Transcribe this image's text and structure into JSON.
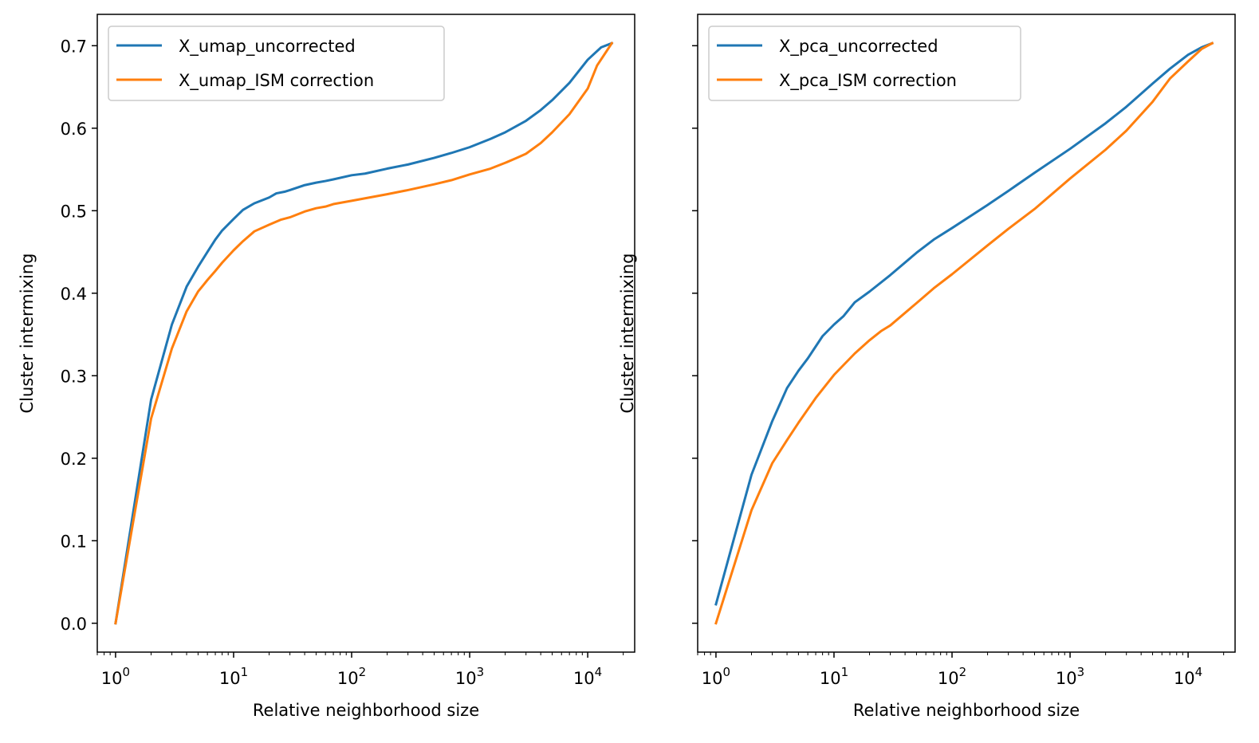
{
  "chart_data": [
    {
      "type": "line",
      "xlabel": "Relative neighborhood size",
      "ylabel": "Cluster intermixing",
      "xscale": "log",
      "xlim": [
        0.7,
        25000
      ],
      "ylim": [
        -0.035,
        0.738
      ],
      "xticks": [
        {
          "value": 1,
          "base": "10",
          "exp": "0"
        },
        {
          "value": 10,
          "base": "10",
          "exp": "1"
        },
        {
          "value": 100,
          "base": "10",
          "exp": "2"
        },
        {
          "value": 1000,
          "base": "10",
          "exp": "3"
        },
        {
          "value": 10000,
          "base": "10",
          "exp": "4"
        }
      ],
      "yticks": [
        "0.0",
        "0.1",
        "0.2",
        "0.3",
        "0.4",
        "0.5",
        "0.6",
        "0.7"
      ],
      "show_ytick_labels": true,
      "legend_position": "upper-left",
      "grid": false,
      "series": [
        {
          "name": "X_umap_uncorrected",
          "color": "#1f77b4",
          "x": [
            1,
            2,
            3,
            4,
            5,
            6,
            7,
            8,
            10,
            12,
            15,
            20,
            23,
            27,
            30,
            40,
            50,
            60,
            70,
            100,
            130,
            200,
            300,
            500,
            700,
            1000,
            1500,
            2000,
            3000,
            4000,
            5000,
            7000,
            10000,
            13000,
            16000
          ],
          "y": [
            0.0,
            0.271,
            0.362,
            0.408,
            0.432,
            0.45,
            0.465,
            0.476,
            0.49,
            0.501,
            0.509,
            0.516,
            0.521,
            0.523,
            0.525,
            0.531,
            0.534,
            0.536,
            0.538,
            0.543,
            0.545,
            0.551,
            0.556,
            0.564,
            0.57,
            0.577,
            0.587,
            0.595,
            0.609,
            0.622,
            0.634,
            0.655,
            0.683,
            0.698,
            0.703
          ]
        },
        {
          "name": "X_umap_ISM correction",
          "color": "#ff7f0e",
          "x": [
            1,
            2,
            3,
            4,
            5,
            6,
            7,
            8,
            10,
            12,
            15,
            20,
            25,
            30,
            40,
            50,
            60,
            70,
            100,
            200,
            300,
            500,
            700,
            1000,
            1500,
            2000,
            2500,
            3000,
            4000,
            5000,
            7000,
            10000,
            12000,
            16000
          ],
          "y": [
            0.0,
            0.248,
            0.333,
            0.378,
            0.402,
            0.416,
            0.427,
            0.437,
            0.452,
            0.463,
            0.475,
            0.483,
            0.489,
            0.492,
            0.499,
            0.503,
            0.505,
            0.508,
            0.512,
            0.52,
            0.525,
            0.532,
            0.537,
            0.544,
            0.551,
            0.558,
            0.564,
            0.569,
            0.582,
            0.595,
            0.617,
            0.648,
            0.676,
            0.703
          ]
        }
      ]
    },
    {
      "type": "line",
      "xlabel": "Relative neighborhood size",
      "ylabel": "Cluster intermixing",
      "xscale": "log",
      "xlim": [
        0.7,
        25000
      ],
      "ylim": [
        -0.035,
        0.738
      ],
      "xticks": [
        {
          "value": 1,
          "base": "10",
          "exp": "0"
        },
        {
          "value": 10,
          "base": "10",
          "exp": "1"
        },
        {
          "value": 100,
          "base": "10",
          "exp": "2"
        },
        {
          "value": 1000,
          "base": "10",
          "exp": "3"
        },
        {
          "value": 10000,
          "base": "10",
          "exp": "4"
        }
      ],
      "yticks": [
        "0.0",
        "0.1",
        "0.2",
        "0.3",
        "0.4",
        "0.5",
        "0.6",
        "0.7"
      ],
      "show_ytick_labels": false,
      "legend_position": "upper-left",
      "grid": false,
      "series": [
        {
          "name": "X_pca_uncorrected",
          "color": "#1f77b4",
          "x": [
            1,
            2,
            3,
            4,
            5,
            6,
            8,
            10,
            12,
            15,
            20,
            30,
            50,
            70,
            100,
            200,
            300,
            500,
            1000,
            2000,
            3000,
            5000,
            7000,
            10000,
            13000,
            16000
          ],
          "y": [
            0.023,
            0.18,
            0.245,
            0.285,
            0.306,
            0.321,
            0.348,
            0.362,
            0.372,
            0.389,
            0.402,
            0.422,
            0.449,
            0.465,
            0.479,
            0.507,
            0.524,
            0.546,
            0.575,
            0.606,
            0.626,
            0.654,
            0.672,
            0.689,
            0.698,
            0.703
          ]
        },
        {
          "name": "X_pca_ISM correction",
          "color": "#ff7f0e",
          "x": [
            1,
            2,
            3,
            4,
            5,
            7,
            10,
            15,
            20,
            25,
            30,
            50,
            70,
            100,
            200,
            300,
            500,
            1000,
            2000,
            3000,
            5000,
            7000,
            10000,
            13000,
            16000
          ],
          "y": [
            0.0,
            0.137,
            0.194,
            0.222,
            0.243,
            0.273,
            0.301,
            0.327,
            0.343,
            0.354,
            0.361,
            0.388,
            0.406,
            0.423,
            0.458,
            0.478,
            0.502,
            0.539,
            0.574,
            0.597,
            0.632,
            0.66,
            0.681,
            0.696,
            0.703
          ]
        }
      ]
    }
  ]
}
